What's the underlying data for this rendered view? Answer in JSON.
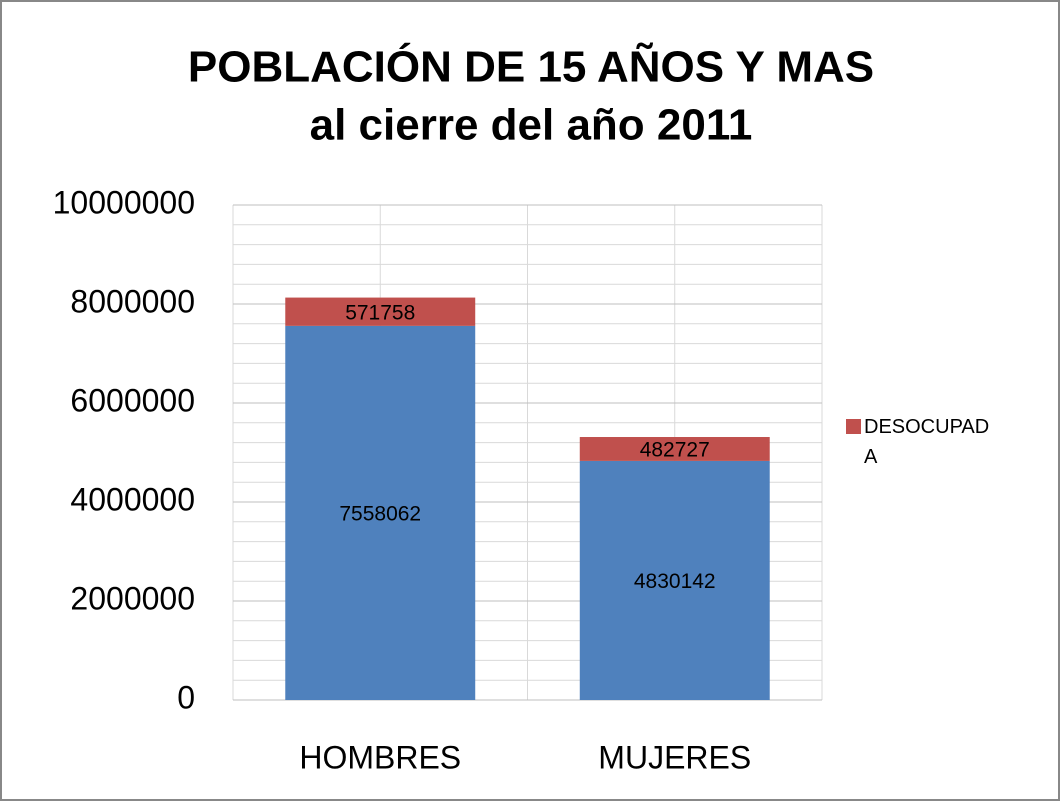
{
  "chart_data": {
    "type": "stacked_bar",
    "title": [
      "POBLACIÓN DE 15 AÑOS Y MAS",
      "al cierre del año 2011"
    ],
    "categories": [
      "HOMBRES",
      "MUJERES"
    ],
    "series": [
      {
        "color": "#4f81bd",
        "values": [
          7558062,
          4830142
        ]
      },
      {
        "name": "DESOCUPADA",
        "color": "#c0504d",
        "values": [
          571758,
          482727
        ]
      }
    ],
    "ylim": [
      0,
      10000000
    ],
    "yticks": [
      0,
      2000000,
      4000000,
      6000000,
      8000000,
      10000000
    ],
    "grid": true,
    "legend": "right"
  }
}
